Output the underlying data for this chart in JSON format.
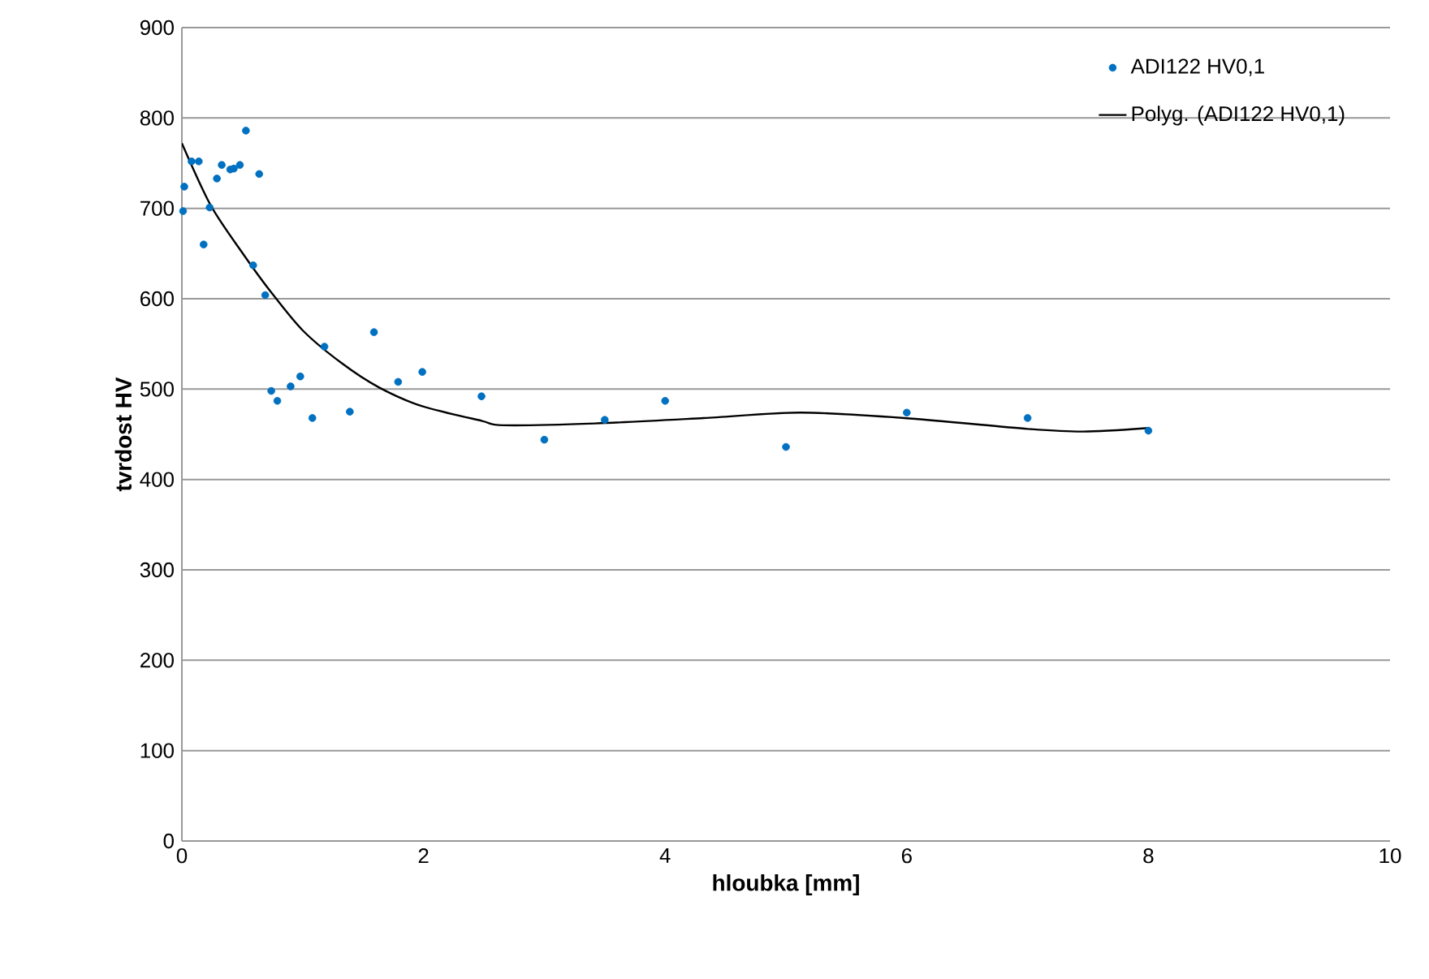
{
  "chart_data": {
    "type": "scatter",
    "xlabel": "hloubka [mm]",
    "ylabel": "tvrdost HV",
    "xlim": [
      0,
      10
    ],
    "xticks": [
      0,
      2,
      4,
      6,
      8,
      10
    ],
    "ylim": [
      0,
      900
    ],
    "yticks": [
      0,
      100,
      200,
      300,
      400,
      500,
      600,
      700,
      800,
      900
    ],
    "grid": "y",
    "legend": "top right",
    "marker": "circle",
    "series": [
      {
        "name": "ADI122 HV0,1",
        "color": "#0070c0",
        "x": [
          0.02,
          0.01,
          0.08,
          0.14,
          0.18,
          0.23,
          0.29,
          0.33,
          0.4,
          0.43,
          0.48,
          0.53,
          0.64,
          0.59,
          0.69,
          0.74,
          0.79,
          0.9,
          0.98,
          1.08,
          1.18,
          1.39,
          1.59,
          1.79,
          1.99,
          2.48,
          3.0,
          3.5,
          4.0,
          5.0,
          6.0,
          7.0,
          8.0
        ],
        "values": [
          724,
          697,
          752,
          752,
          660,
          701,
          733,
          748,
          743,
          744,
          748,
          786,
          738,
          637,
          604,
          498,
          487,
          503,
          514,
          468,
          547,
          475,
          563,
          508,
          519,
          492,
          444,
          466,
          487,
          436,
          474,
          468,
          454
        ]
      },
      {
        "name": "Polyg. (ADI122 HV0,1)",
        "color": "#000000",
        "type": "line",
        "marker": "none",
        "line_style": "solid",
        "x": [
          0,
          0.24,
          0.51,
          0.74,
          1.0,
          1.32,
          1.63,
          1.99,
          2.48,
          2.66,
          3.42,
          4.32,
          5.12,
          5.98,
          7.0,
          7.46,
          8.0
        ],
        "values": [
          772,
          703,
          649,
          607,
          565,
          529,
          502,
          481,
          465,
          460,
          462,
          468,
          474,
          468,
          456,
          453,
          457
        ]
      }
    ]
  }
}
